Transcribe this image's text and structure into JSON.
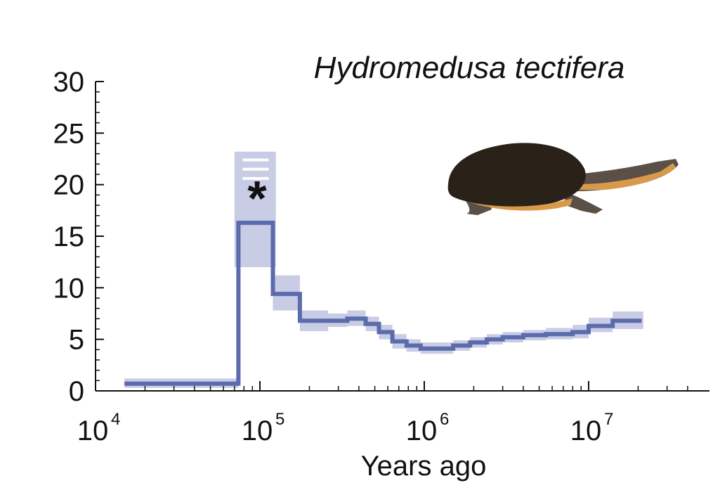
{
  "colors": {
    "line": "#5b6bab",
    "band": "#c8cce5",
    "axis": "#111111",
    "turtle_shell": "#2a2218",
    "turtle_skin": "#5a5047",
    "turtle_stripe": "#d89a4a"
  },
  "icons": {
    "turtle": "turtle-illustration-icon"
  },
  "chart_data": {
    "type": "line",
    "title": "Hydromedusa tectifera",
    "xlabel": "Years ago",
    "ylabel": "",
    "xscale": "log",
    "xlim": [
      10000,
      45000000
    ],
    "ylim": [
      0,
      30
    ],
    "xticks": [
      {
        "base": "10",
        "exp": "4"
      },
      {
        "base": "10",
        "exp": "5"
      },
      {
        "base": "10",
        "exp": "6"
      },
      {
        "base": "10",
        "exp": "7"
      }
    ],
    "yticks": [
      0,
      5,
      10,
      15,
      20,
      25,
      30
    ],
    "annotation": "*",
    "annotation_position": [
      90000,
      18.2
    ],
    "grid": false,
    "series": [
      {
        "kind": "step",
        "points": [
          [
            15000,
            0.7
          ],
          [
            74000,
            0.7
          ],
          [
            74000,
            16.3
          ],
          [
            120000,
            16.3
          ],
          [
            120000,
            9.4
          ],
          [
            175000,
            9.4
          ],
          [
            175000,
            6.8
          ],
          [
            260000,
            6.8
          ],
          [
            260000,
            6.8
          ],
          [
            340000,
            6.8
          ],
          [
            340000,
            7.0
          ],
          [
            440000,
            7.0
          ],
          [
            440000,
            6.5
          ],
          [
            530000,
            6.5
          ],
          [
            530000,
            5.7
          ],
          [
            640000,
            5.7
          ],
          [
            640000,
            4.8
          ],
          [
            780000,
            4.8
          ],
          [
            780000,
            4.4
          ],
          [
            950000,
            4.4
          ],
          [
            950000,
            4.1
          ],
          [
            1500000,
            4.1
          ],
          [
            1500000,
            4.4
          ],
          [
            1900000,
            4.4
          ],
          [
            1900000,
            4.7
          ],
          [
            2400000,
            4.7
          ],
          [
            2400000,
            5.0
          ],
          [
            3000000,
            5.0
          ],
          [
            3000000,
            5.2
          ],
          [
            4000000,
            5.2
          ],
          [
            4000000,
            5.4
          ],
          [
            5500000,
            5.4
          ],
          [
            5500000,
            5.5
          ],
          [
            8000000,
            5.5
          ],
          [
            8000000,
            5.7
          ],
          [
            10000000,
            5.7
          ],
          [
            10000000,
            6.3
          ],
          [
            14000000,
            6.3
          ],
          [
            14000000,
            6.8
          ],
          [
            21000000,
            6.8
          ]
        ]
      }
    ],
    "bands": [
      {
        "x0": 15000,
        "x1": 74000,
        "lo": 0.3,
        "hi": 1.2
      },
      {
        "x0": 70000,
        "x1": 125000,
        "lo": 12.0,
        "hi": 23.2
      },
      {
        "x0": 120000,
        "x1": 175000,
        "lo": 7.8,
        "hi": 11.2
      },
      {
        "x0": 175000,
        "x1": 260000,
        "lo": 5.8,
        "hi": 7.8
      },
      {
        "x0": 260000,
        "x1": 340000,
        "lo": 6.2,
        "hi": 7.5
      },
      {
        "x0": 340000,
        "x1": 440000,
        "lo": 6.3,
        "hi": 7.8
      },
      {
        "x0": 440000,
        "x1": 530000,
        "lo": 5.8,
        "hi": 7.2
      },
      {
        "x0": 530000,
        "x1": 640000,
        "lo": 5.0,
        "hi": 6.4
      },
      {
        "x0": 640000,
        "x1": 780000,
        "lo": 4.1,
        "hi": 5.5
      },
      {
        "x0": 780000,
        "x1": 950000,
        "lo": 3.8,
        "hi": 5.0
      },
      {
        "x0": 950000,
        "x1": 1500000,
        "lo": 3.6,
        "hi": 4.7
      },
      {
        "x0": 1500000,
        "x1": 1900000,
        "lo": 3.9,
        "hi": 4.9
      },
      {
        "x0": 1900000,
        "x1": 2400000,
        "lo": 4.2,
        "hi": 5.2
      },
      {
        "x0": 2400000,
        "x1": 3000000,
        "lo": 4.5,
        "hi": 5.5
      },
      {
        "x0": 3000000,
        "x1": 4000000,
        "lo": 4.7,
        "hi": 5.7
      },
      {
        "x0": 4000000,
        "x1": 5500000,
        "lo": 4.9,
        "hi": 5.9
      },
      {
        "x0": 5500000,
        "x1": 8000000,
        "lo": 5.0,
        "hi": 6.1
      },
      {
        "x0": 8000000,
        "x1": 10000000,
        "lo": 5.1,
        "hi": 6.4
      },
      {
        "x0": 10000000,
        "x1": 14000000,
        "lo": 5.7,
        "hi": 7.1
      },
      {
        "x0": 14000000,
        "x1": 21500000,
        "lo": 6.0,
        "hi": 7.7
      }
    ],
    "band_bars": [
      {
        "x0": 74000,
        "x1": 120000,
        "y": 20.6
      },
      {
        "x0": 74000,
        "x1": 120000,
        "y": 21.5
      },
      {
        "x0": 74000,
        "x1": 120000,
        "y": 22.4
      }
    ]
  }
}
